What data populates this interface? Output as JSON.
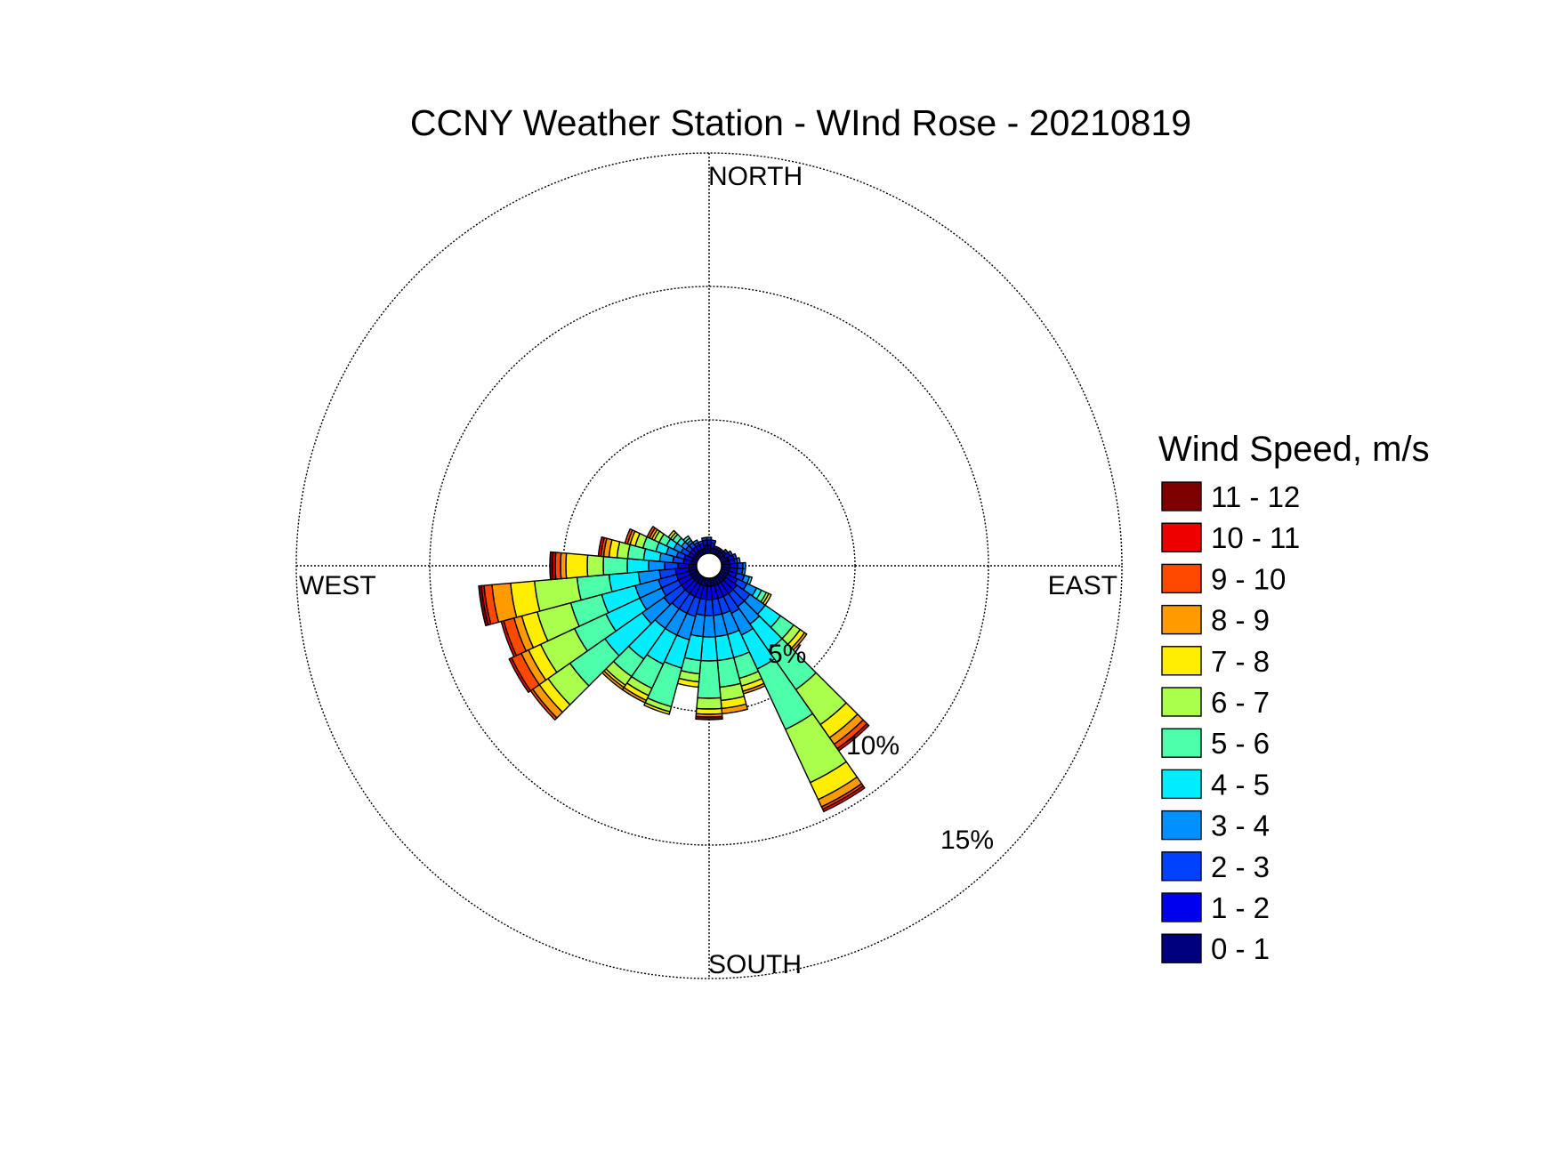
{
  "chart_data": {
    "type": "wind_rose",
    "title": "CCNY Weather Station - WInd Rose - 20210819",
    "directions": {
      "north": "NORTH",
      "south": "SOUTH",
      "east": "EAST",
      "west": "WEST"
    },
    "radial_axis": {
      "unit": "%",
      "max": 15,
      "rings": [
        5,
        10,
        15
      ],
      "ring_labels": [
        "5%",
        "10%",
        "15%"
      ]
    },
    "grid": "dotted",
    "legend": {
      "title": "Wind Speed, m/s",
      "placement": "right"
    },
    "speed_bins": [
      {
        "label": "0 - 1",
        "color": "#00007f"
      },
      {
        "label": "1 - 2",
        "color": "#0000ee"
      },
      {
        "label": "2 - 3",
        "color": "#0040ff"
      },
      {
        "label": "3 - 4",
        "color": "#0090ff"
      },
      {
        "label": "4 - 5",
        "color": "#00eeff"
      },
      {
        "label": "5 - 6",
        "color": "#4dffaa"
      },
      {
        "label": "6 - 7",
        "color": "#aaff4d"
      },
      {
        "label": "7 - 8",
        "color": "#ffee00"
      },
      {
        "label": "8 - 9",
        "color": "#ff9a00"
      },
      {
        "label": "9 - 10",
        "color": "#ff4800"
      },
      {
        "label": "10 - 11",
        "color": "#ee0000"
      },
      {
        "label": "11 - 12",
        "color": "#7f0000"
      }
    ],
    "direction_sectors_deg": [
      0,
      10,
      20,
      30,
      40,
      50,
      60,
      70,
      80,
      90,
      100,
      110,
      120,
      130,
      140,
      150,
      160,
      170,
      180,
      190,
      200,
      210,
      220,
      230,
      240,
      250,
      260,
      270,
      280,
      290,
      300,
      310,
      320,
      330,
      340,
      350
    ],
    "sector_width_deg": 10,
    "series_note_units": "cumulative percent frequency per speed bin per direction",
    "bins_by_direction": {
      "0": [
        0.3,
        0.2,
        0.1,
        0.0,
        0.0,
        0.0,
        0.0,
        0.0,
        0.0,
        0.0,
        0.0,
        0.0
      ],
      "10": [
        0.2,
        0.2,
        0.1,
        0.0,
        0.0,
        0.0,
        0.0,
        0.0,
        0.0,
        0.0,
        0.0,
        0.0
      ],
      "20": [
        0.2,
        0.1,
        0.0,
        0.0,
        0.0,
        0.0,
        0.0,
        0.0,
        0.0,
        0.0,
        0.0,
        0.0
      ],
      "30": [
        0.2,
        0.1,
        0.0,
        0.0,
        0.0,
        0.0,
        0.0,
        0.0,
        0.0,
        0.0,
        0.0,
        0.0
      ],
      "40": [
        0.2,
        0.1,
        0.0,
        0.0,
        0.0,
        0.0,
        0.0,
        0.0,
        0.0,
        0.0,
        0.0,
        0.0
      ],
      "50": [
        0.2,
        0.1,
        0.1,
        0.0,
        0.0,
        0.0,
        0.0,
        0.0,
        0.0,
        0.0,
        0.0,
        0.0
      ],
      "60": [
        0.2,
        0.2,
        0.1,
        0.0,
        0.0,
        0.0,
        0.0,
        0.0,
        0.0,
        0.0,
        0.0,
        0.0
      ],
      "70": [
        0.3,
        0.2,
        0.1,
        0.0,
        0.0,
        0.0,
        0.0,
        0.0,
        0.0,
        0.0,
        0.0,
        0.0
      ],
      "80": [
        0.3,
        0.2,
        0.1,
        0.1,
        0.0,
        0.0,
        0.0,
        0.0,
        0.0,
        0.0,
        0.0,
        0.0
      ],
      "90": [
        0.3,
        0.3,
        0.2,
        0.1,
        0.0,
        0.0,
        0.0,
        0.0,
        0.0,
        0.0,
        0.0,
        0.0
      ],
      "100": [
        0.3,
        0.3,
        0.2,
        0.1,
        0.0,
        0.0,
        0.0,
        0.0,
        0.0,
        0.0,
        0.0,
        0.0
      ],
      "110": [
        0.3,
        0.3,
        0.3,
        0.2,
        0.1,
        0.0,
        0.0,
        0.0,
        0.0,
        0.0,
        0.0,
        0.0
      ],
      "120": [
        0.3,
        0.4,
        0.4,
        0.4,
        0.2,
        0.2,
        0.1,
        0.1,
        0.0,
        0.0,
        0.0,
        0.0
      ],
      "130": [
        0.3,
        0.5,
        0.6,
        0.7,
        0.7,
        0.6,
        0.3,
        0.2,
        0.1,
        0.0,
        0.0,
        0.0
      ],
      "140": [
        0.3,
        0.5,
        0.6,
        0.8,
        1.2,
        1.8,
        1.6,
        0.6,
        0.3,
        0.2,
        0.1,
        0.0
      ],
      "150": [
        0.3,
        0.5,
        0.7,
        0.9,
        1.4,
        2.5,
        2.2,
        0.7,
        0.3,
        0.1,
        0.1,
        0.0
      ],
      "160": [
        0.3,
        0.5,
        0.6,
        0.8,
        0.9,
        0.8,
        0.3,
        0.2,
        0.1,
        0.0,
        0.0,
        0.0
      ],
      "170": [
        0.3,
        0.5,
        0.6,
        0.8,
        0.9,
        1.0,
        0.5,
        0.3,
        0.2,
        0.0,
        0.0,
        0.0
      ],
      "180": [
        0.3,
        0.5,
        0.6,
        0.8,
        0.9,
        1.4,
        0.4,
        0.2,
        0.1,
        0.0,
        0.0,
        0.1
      ],
      "190": [
        0.3,
        0.5,
        0.6,
        0.8,
        0.9,
        0.5,
        0.3,
        0.2,
        0.0,
        0.0,
        0.0,
        0.0
      ],
      "200": [
        0.3,
        0.5,
        0.7,
        0.9,
        1.1,
        1.5,
        0.2,
        0.1,
        0.0,
        0.0,
        0.0,
        0.0
      ],
      "210": [
        0.3,
        0.5,
        0.7,
        0.9,
        1.2,
        1.0,
        0.3,
        0.2,
        0.1,
        0.0,
        0.0,
        0.0
      ],
      "220": [
        0.3,
        0.5,
        0.7,
        0.9,
        1.4,
        0.8,
        0.4,
        0.1,
        0.1,
        0.0,
        0.0,
        0.0
      ],
      "230": [
        0.3,
        0.5,
        0.8,
        1.0,
        1.7,
        1.6,
        1.0,
        0.4,
        0.3,
        0.1,
        0.0,
        0.0
      ],
      "240": [
        0.3,
        0.5,
        0.7,
        0.9,
        1.4,
        1.3,
        1.4,
        0.5,
        0.3,
        0.4,
        0.1,
        0.0
      ],
      "250": [
        0.3,
        0.5,
        0.7,
        0.9,
        1.3,
        1.2,
        1.3,
        0.6,
        0.3,
        0.4,
        0.1,
        0.0
      ],
      "260": [
        0.3,
        0.5,
        0.6,
        0.8,
        1.1,
        1.2,
        1.6,
        0.9,
        0.7,
        0.3,
        0.1,
        0.1
      ],
      "270": [
        0.3,
        0.4,
        0.5,
        0.6,
        0.8,
        0.9,
        0.6,
        0.8,
        0.2,
        0.2,
        0.1,
        0.1
      ],
      "280": [
        0.2,
        0.3,
        0.4,
        0.5,
        0.6,
        0.6,
        0.4,
        0.3,
        0.2,
        0.1,
        0.1,
        0.0
      ],
      "290": [
        0.2,
        0.3,
        0.3,
        0.4,
        0.4,
        0.5,
        0.3,
        0.2,
        0.1,
        0.1,
        0.0,
        0.0
      ],
      "300": [
        0.2,
        0.2,
        0.3,
        0.3,
        0.3,
        0.3,
        0.2,
        0.1,
        0.1,
        0.1,
        0.0,
        0.0
      ],
      "310": [
        0.2,
        0.2,
        0.2,
        0.2,
        0.2,
        0.2,
        0.1,
        0.1,
        0.0,
        0.0,
        0.0,
        0.0
      ],
      "320": [
        0.2,
        0.2,
        0.2,
        0.1,
        0.1,
        0.1,
        0.0,
        0.0,
        0.0,
        0.0,
        0.0,
        0.0
      ],
      "330": [
        0.2,
        0.2,
        0.1,
        0.1,
        0.0,
        0.0,
        0.0,
        0.0,
        0.0,
        0.0,
        0.0,
        0.0
      ],
      "340": [
        0.2,
        0.2,
        0.1,
        0.0,
        0.0,
        0.0,
        0.0,
        0.0,
        0.0,
        0.0,
        0.0,
        0.0
      ],
      "350": [
        0.3,
        0.2,
        0.1,
        0.0,
        0.0,
        0.0,
        0.0,
        0.0,
        0.0,
        0.0,
        0.0,
        0.0
      ]
    }
  }
}
